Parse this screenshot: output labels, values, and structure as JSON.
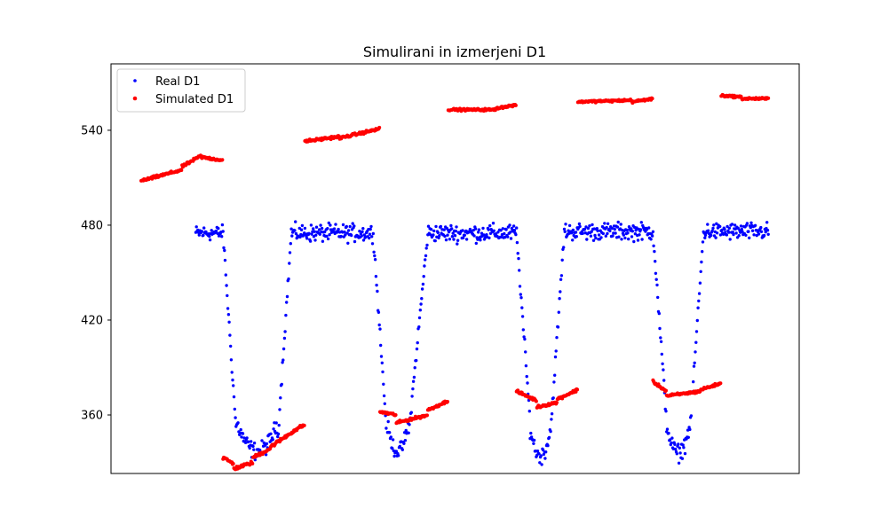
{
  "chart_data": {
    "type": "scatter",
    "title": "Simulirani in izmerjeni D1",
    "xlabel": "",
    "ylabel": "",
    "x_ticks_visible": false,
    "ylim": [
      323,
      582
    ],
    "yticks": [
      360,
      420,
      480,
      540
    ],
    "legend": {
      "placement": "top-left",
      "entries": [
        "Real D1",
        "Simulated D1"
      ]
    },
    "grid": false,
    "series": [
      {
        "name": "Real D1",
        "color": "#0000ff",
        "marker_size": 2.2,
        "segments": [
          {
            "kind": "high",
            "x": [
              40,
              60
            ],
            "y": [
              475,
              475
            ],
            "spread": 7
          },
          {
            "kind": "trans",
            "x": [
              60,
              70
            ],
            "y": [
              475,
              345
            ],
            "spread": 6
          },
          {
            "kind": "trough",
            "x": [
              70,
              100
            ],
            "y": [
              343,
              343
            ],
            "spread": 8
          },
          {
            "kind": "trans",
            "x": [
              100,
              110
            ],
            "y": [
              345,
              475
            ],
            "spread": 6
          },
          {
            "kind": "high",
            "x": [
              110,
              170
            ],
            "y": [
              475,
              475
            ],
            "spread": 8
          },
          {
            "kind": "trans",
            "x": [
              170,
              180
            ],
            "y": [
              475,
              348
            ],
            "spread": 6
          },
          {
            "kind": "trough",
            "x": [
              180,
              196
            ],
            "y": [
              343,
              343
            ],
            "spread": 7
          },
          {
            "kind": "trans",
            "x": [
              196,
              210
            ],
            "y": [
              348,
              475
            ],
            "spread": 6
          },
          {
            "kind": "high",
            "x": [
              210,
              275
            ],
            "y": [
              475,
              475
            ],
            "spread": 8
          },
          {
            "kind": "trans",
            "x": [
              275,
              285
            ],
            "y": [
              475,
              355
            ],
            "spread": 6
          },
          {
            "kind": "trough",
            "x": [
              285,
              300
            ],
            "y": [
              340,
              340
            ],
            "spread": 8
          },
          {
            "kind": "trans",
            "x": [
              300,
              310
            ],
            "y": [
              350,
              475
            ],
            "spread": 6
          },
          {
            "kind": "high",
            "x": [
              310,
              375
            ],
            "y": [
              476,
              476
            ],
            "spread": 8
          },
          {
            "kind": "trans",
            "x": [
              375,
              385
            ],
            "y": [
              476,
              355
            ],
            "spread": 6
          },
          {
            "kind": "trough",
            "x": [
              385,
              402
            ],
            "y": [
              342,
              342
            ],
            "spread": 8
          },
          {
            "kind": "trans",
            "x": [
              402,
              412
            ],
            "y": [
              350,
              475
            ],
            "spread": 6
          },
          {
            "kind": "high",
            "x": [
              412,
              460
            ],
            "y": [
              476,
              476
            ],
            "spread": 8
          }
        ]
      },
      {
        "name": "Simulated D1",
        "color": "#ff0000",
        "marker_size": 2.6,
        "segments": [
          {
            "x": [
              0,
              30
            ],
            "y": [
              508,
              515
            ],
            "spread": 1.2
          },
          {
            "x": [
              30,
              44
            ],
            "y": [
              517,
              524
            ],
            "spread": 1.2
          },
          {
            "x": [
              44,
              60
            ],
            "y": [
              523,
              521
            ],
            "spread": 1.2
          },
          {
            "x": [
              60,
              68
            ],
            "y": [
              333,
              329
            ],
            "spread": 1.5
          },
          {
            "x": [
              68,
              82
            ],
            "y": [
              326,
              330
            ],
            "spread": 1.5
          },
          {
            "x": [
              82,
              95
            ],
            "y": [
              333,
              339
            ],
            "spread": 1.5
          },
          {
            "x": [
              95,
              112
            ],
            "y": [
              340,
              350
            ],
            "spread": 1.5
          },
          {
            "x": [
              112,
              120
            ],
            "y": [
              350,
              354
            ],
            "spread": 1.5
          },
          {
            "x": [
              120,
              145
            ],
            "y": [
              533,
              536
            ],
            "spread": 1.2
          },
          {
            "x": [
              145,
              175
            ],
            "y": [
              535,
              541
            ],
            "spread": 1.2
          },
          {
            "x": [
              175,
              187
            ],
            "y": [
              362,
              360
            ],
            "spread": 1.2
          },
          {
            "x": [
              187,
              210
            ],
            "y": [
              355,
              360
            ],
            "spread": 1.2
          },
          {
            "x": [
              210,
              225
            ],
            "y": [
              363,
              369
            ],
            "spread": 1.2
          },
          {
            "x": [
              225,
              260
            ],
            "y": [
              553,
              553
            ],
            "spread": 1.0
          },
          {
            "x": [
              260,
              275
            ],
            "y": [
              554,
              556
            ],
            "spread": 1.0
          },
          {
            "x": [
              275,
              290
            ],
            "y": [
              375,
              369
            ],
            "spread": 1.2
          },
          {
            "x": [
              290,
              305
            ],
            "y": [
              365,
              368
            ],
            "spread": 1.2
          },
          {
            "x": [
              305,
              320
            ],
            "y": [
              370,
              376
            ],
            "spread": 1.2
          },
          {
            "x": [
              320,
              360
            ],
            "y": [
              558,
              559
            ],
            "spread": 1.0
          },
          {
            "x": [
              360,
              375
            ],
            "y": [
              558,
              560
            ],
            "spread": 1.0
          },
          {
            "x": [
              375,
              385
            ],
            "y": [
              381,
              375
            ],
            "spread": 1.2
          },
          {
            "x": [
              385,
              410
            ],
            "y": [
              372,
              375
            ],
            "spread": 1.2
          },
          {
            "x": [
              410,
              425
            ],
            "y": [
              376,
              380
            ],
            "spread": 1.2
          },
          {
            "x": [
              425,
              440
            ],
            "y": [
              562,
              561
            ],
            "spread": 1.0
          },
          {
            "x": [
              440,
              460
            ],
            "y": [
              560,
              560
            ],
            "spread": 1.0
          }
        ]
      }
    ],
    "xlim": [
      0,
      460
    ]
  }
}
